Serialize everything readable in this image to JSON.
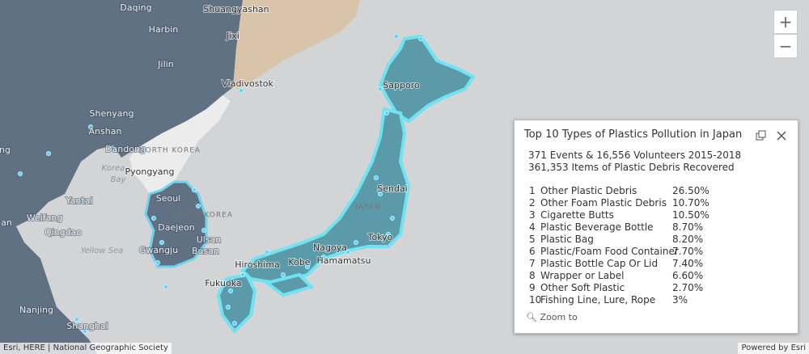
{
  "map": {
    "labels": [
      "Daqing",
      "Shuangyashan",
      "Harbin",
      "Jixi",
      "Jilin",
      "Vladivostok",
      "Sapporo",
      "Shenyang",
      "Anshan",
      "Dandong",
      "NORTH KOREA",
      "Korea",
      "Bay",
      "Pyongyang",
      "Sendai",
      "Seoul",
      "SOUTH KOREA",
      "JAPAN",
      "Yantai",
      "Weifang",
      "Qingdao",
      "Daejeon",
      "Ulsan",
      "Gwangju",
      "Busan",
      "Yellow Sea",
      "Hiroshima",
      "Kobe",
      "Nagoya",
      "Tokyo",
      "Hamamatsu",
      "Fukuoka",
      "Nanjing",
      "Shanghai",
      "ng",
      "an"
    ],
    "zoom_in": "+",
    "zoom_out": "−"
  },
  "popup": {
    "title": "Top 10 Types of Plastics Pollution in Japan",
    "summary": [
      "371 Events & 16,556 Volunteers 2015-2018",
      "361,353 Items of Plastic Debris Recovered"
    ],
    "rows": [
      [
        1,
        "Other Plastic Debris",
        "26.50%"
      ],
      [
        2,
        "Other Foam Plastic Debris",
        "10.70%"
      ],
      [
        3,
        "Cigarette Butts",
        "10.50%"
      ],
      [
        4,
        "Plastic Beverage Bottle",
        "8.70%"
      ],
      [
        5,
        "Plastic Bag",
        "8.20%"
      ],
      [
        6,
        "Plastic/Foam Food Container",
        "7.70%"
      ],
      [
        7,
        "Plastic Bottle Cap Or Lid",
        "7.40%"
      ],
      [
        8,
        "Wrapper or Label",
        "6.60%"
      ],
      [
        9,
        "Other Soft Plastic",
        "2.70%"
      ],
      [
        10,
        "Fishing Line, Lure, Rope",
        "3%"
      ]
    ],
    "zoom_to": "Zoom to"
  },
  "attribution": "Esri, HERE | National Geographic Society",
  "powered_by": "Powered by Esri"
}
